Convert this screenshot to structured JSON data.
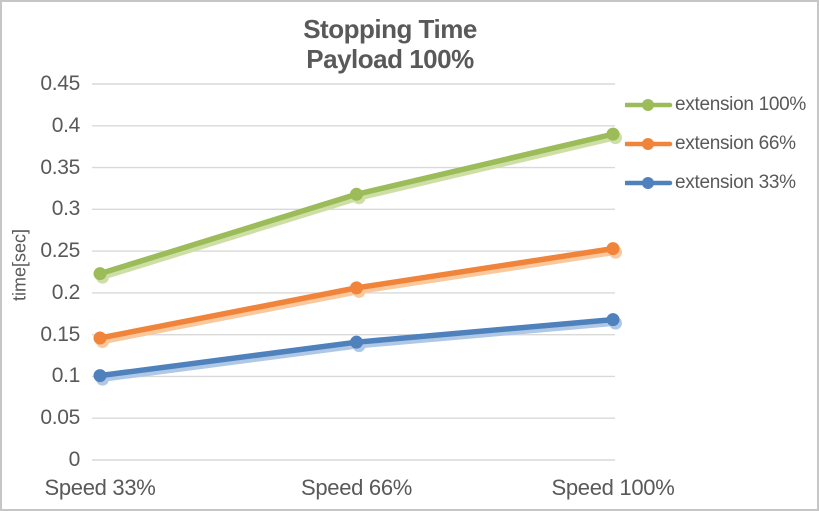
{
  "chart_data": {
    "type": "line",
    "title_line1": "Stopping Time",
    "title_line2": "Payload 100%",
    "ylabel": "time[sec]",
    "xlabel": "",
    "categories": [
      "Speed 33%",
      "Speed 66%",
      "Speed 100%"
    ],
    "series": [
      {
        "name": "extension 100%",
        "color": "#9CBB59",
        "glow": "#CDDFA5",
        "values": [
          0.223,
          0.318,
          0.39
        ]
      },
      {
        "name": "extension 66%",
        "color": "#F0843B",
        "glow": "#F9C89C",
        "values": [
          0.146,
          0.206,
          0.253
        ]
      },
      {
        "name": "extension 33%",
        "color": "#4F81BD",
        "glow": "#AEC8E6",
        "values": [
          0.101,
          0.141,
          0.168
        ]
      }
    ],
    "ylim": [
      0,
      0.45
    ],
    "ytick_step": 0.05,
    "ytick_labels": [
      "0",
      "0.05",
      "0.1",
      "0.15",
      "0.2",
      "0.25",
      "0.3",
      "0.35",
      "0.4",
      "0.45"
    ],
    "grid": true,
    "legend_position": "right",
    "colors": {
      "text": "#595959",
      "gridline": "#D9D9D9",
      "border": "#C6C6C6",
      "background": "#FFFFFF"
    }
  }
}
